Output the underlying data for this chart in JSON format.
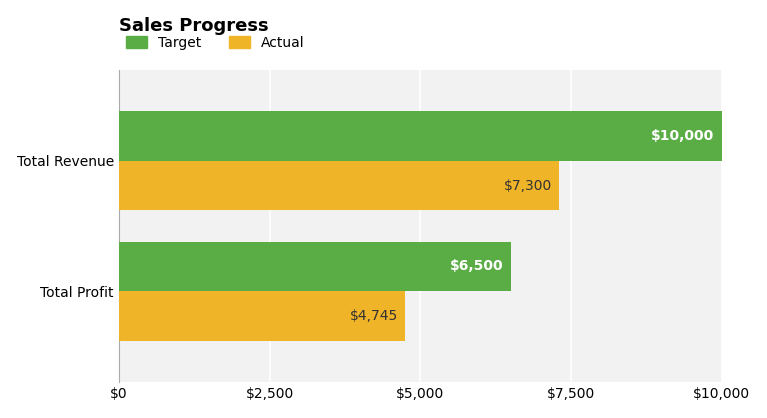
{
  "title": "Sales Progress",
  "categories": [
    "Total Profit",
    "Total Revenue"
  ],
  "target_values": [
    6500,
    10000
  ],
  "actual_values": [
    4745,
    7300
  ],
  "target_color": "#5aac44",
  "actual_color": "#f0b429",
  "target_label": "Target",
  "actual_label": "Actual",
  "xlim": [
    0,
    10000
  ],
  "xticks": [
    0,
    2500,
    5000,
    7500,
    10000
  ],
  "xtick_labels": [
    "$0",
    "$2,500",
    "$5,000",
    "$7,500",
    "$10,000"
  ],
  "bar_height": 0.38,
  "background_color": "#ffffff",
  "plot_bg_color": "#f2f2f2",
  "title_fontsize": 13,
  "label_fontsize": 10,
  "tick_fontsize": 10,
  "annotation_fontsize": 10,
  "target_annotation_color": "#ffffff",
  "actual_annotation_color": "#333333",
  "grid_color": "#ffffff",
  "ytick_label_fontsize": 10
}
